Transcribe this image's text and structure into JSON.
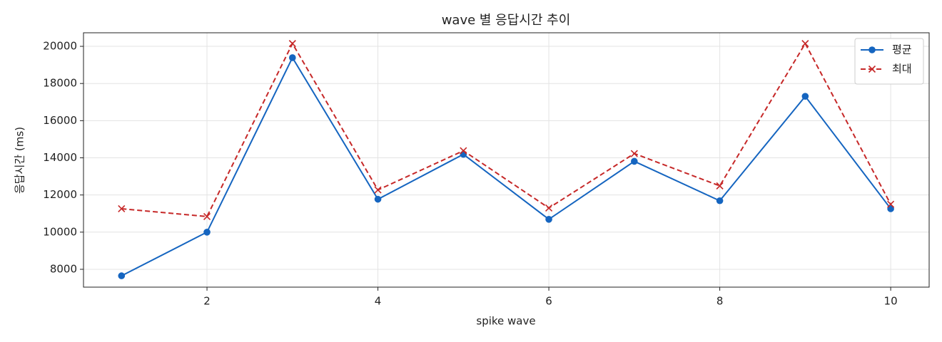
{
  "chart_data": {
    "type": "line",
    "title": "wave 별 응답시간 추이",
    "x_label": "spike wave",
    "y_label": "응답시간 (ms)",
    "x": [
      1,
      2,
      3,
      4,
      5,
      6,
      7,
      8,
      9,
      10
    ],
    "series": [
      {
        "name": "평균",
        "color": "#1565c0",
        "style": "solid",
        "marker": "circle",
        "values": [
          7650,
          10000,
          19390,
          11770,
          14190,
          10690,
          13810,
          11690,
          17310,
          11260
        ]
      },
      {
        "name": "최대",
        "color": "#c62828",
        "style": "dashed",
        "marker": "x",
        "values": [
          11260,
          10840,
          20150,
          12270,
          14380,
          11300,
          14230,
          12490,
          20150,
          11500
        ]
      }
    ],
    "xlim": [
      0.555,
      10.45
    ],
    "xticks": [
      2,
      4,
      6,
      8,
      10
    ],
    "ylim": [
      7040,
      20730
    ],
    "yticks": [
      8000,
      10000,
      12000,
      14000,
      16000,
      18000,
      20000
    ],
    "grid": true,
    "legend": "upper right"
  }
}
